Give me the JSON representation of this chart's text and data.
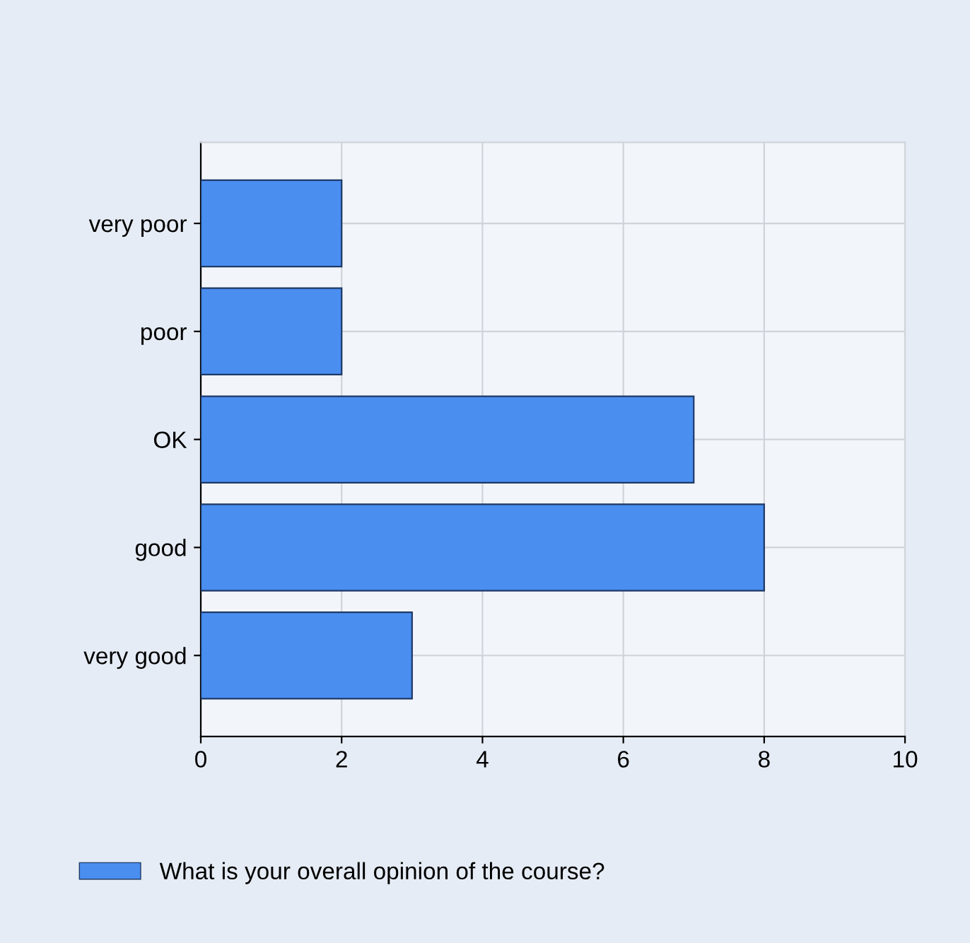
{
  "chart_data": {
    "type": "bar",
    "orientation": "horizontal",
    "categories": [
      "very poor",
      "poor",
      "OK",
      "good",
      "very good"
    ],
    "series": [
      {
        "name": "What is your overall opinion of the course?",
        "color": "#4a8ef0",
        "values": [
          2,
          2,
          7,
          8,
          3
        ]
      }
    ],
    "xlim": [
      0,
      10
    ],
    "xticks": [
      0,
      2,
      4,
      6,
      8,
      10
    ],
    "grid": true,
    "legend": "bottom left"
  }
}
